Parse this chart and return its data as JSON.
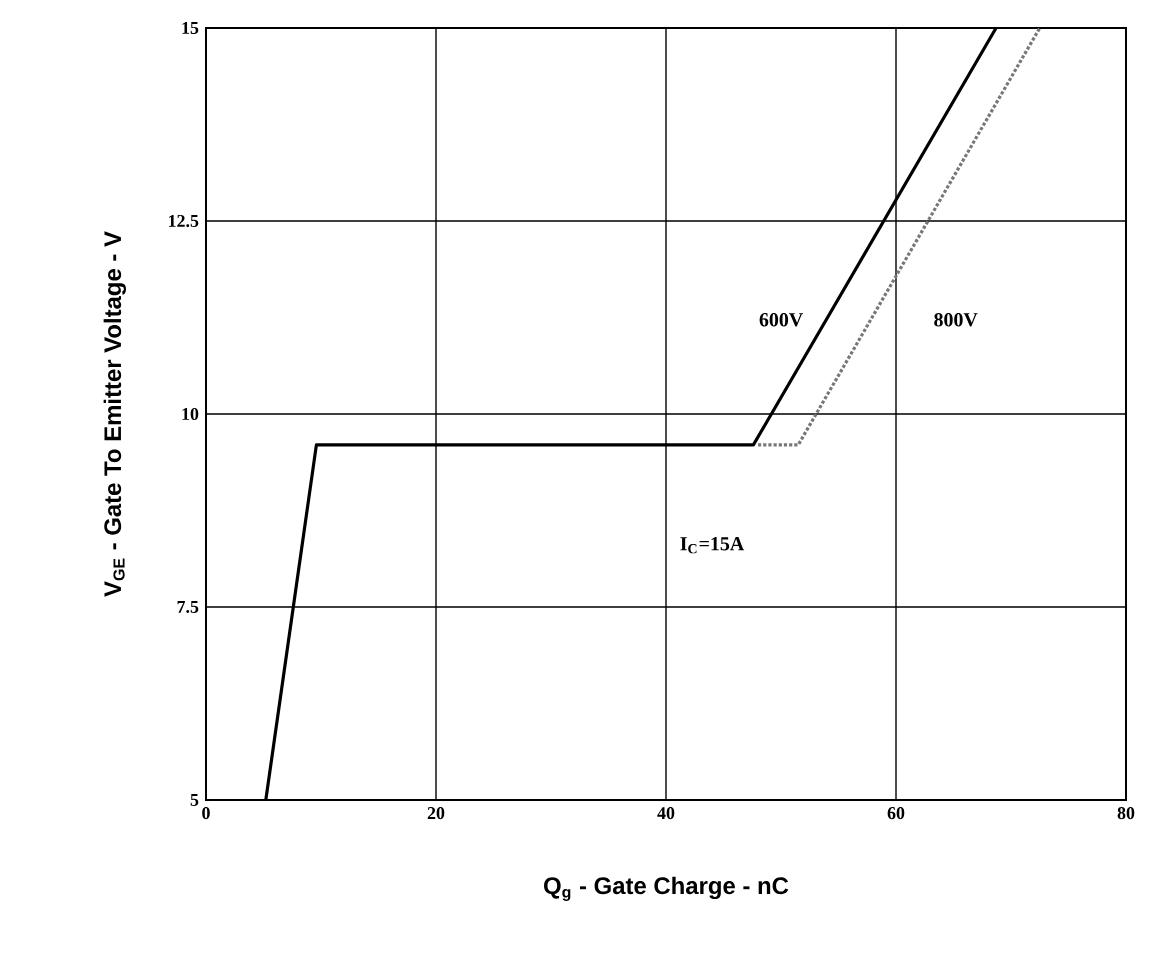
{
  "chart_data": {
    "type": "line",
    "xlabel": "Q$_{g}$ - Gate Charge - nC",
    "ylabel": "V$_{GE}$ - Gate To Emitter Voltage - V",
    "xlim": [
      0,
      80
    ],
    "ylim": [
      5,
      15
    ],
    "xticks": [
      0,
      20,
      40,
      60,
      80
    ],
    "yticks": [
      5,
      7.5,
      10,
      12.5,
      15
    ],
    "grid": true,
    "legend": false,
    "annotations": [
      "I$_{C}$=15A"
    ],
    "series": [
      {
        "name": "600V",
        "color": "#000000",
        "line_style": "solid",
        "x": [
          5.2,
          9.6,
          47.6,
          68.7
        ],
        "values": [
          5,
          9.6,
          9.6,
          15
        ]
      },
      {
        "name": "800V",
        "color": "#777777",
        "line_style": "dotted",
        "x": [
          48,
          51.5,
          72.5
        ],
        "values": [
          9.6,
          9.6,
          15
        ]
      }
    ]
  }
}
